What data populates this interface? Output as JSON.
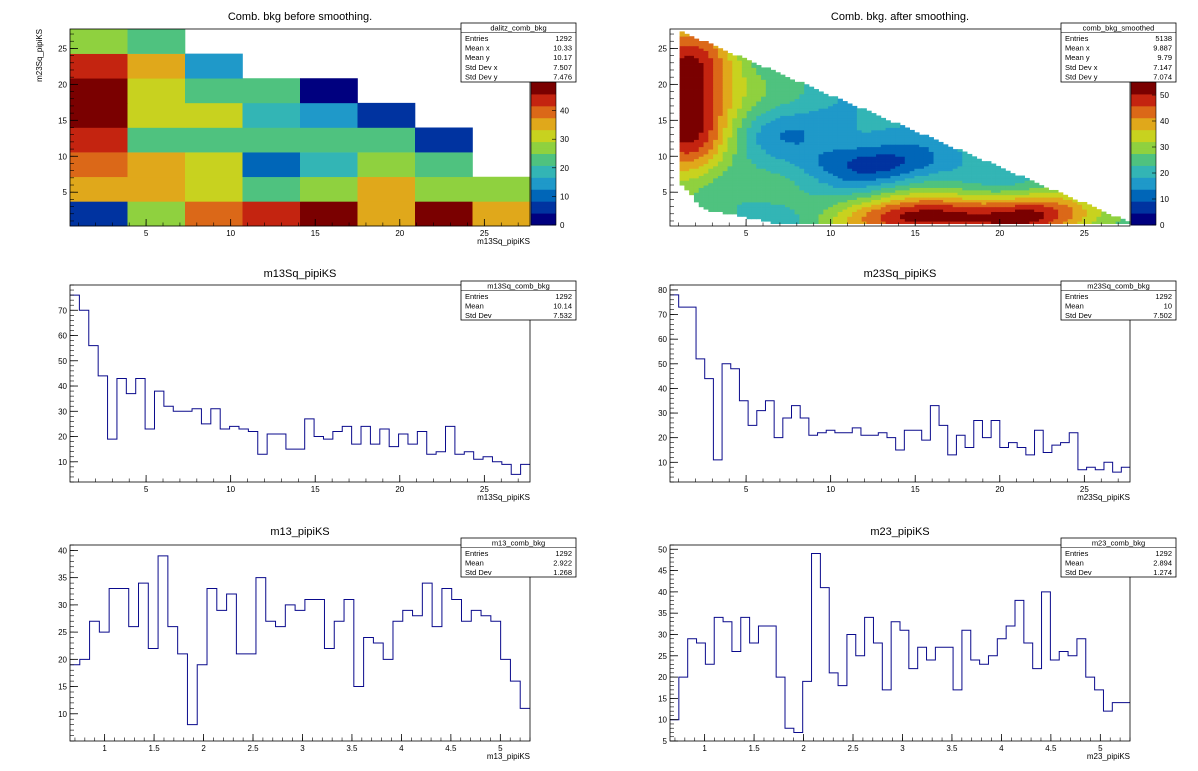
{
  "palette": {
    "histogram_line": "#0a0a8c",
    "axis": "#000000",
    "frame": "#000000",
    "background": "#ffffff",
    "colz_scale": [
      "#00007f",
      "#0033a0",
      "#0066b8",
      "#1f99c9",
      "#33b5b5",
      "#4fc27f",
      "#8fd13f",
      "#c8d21f",
      "#e0a81b",
      "#db6818",
      "#c42410",
      "#7a0000"
    ]
  },
  "chart_data": [
    {
      "id": "dalitz_comb_bkg",
      "type": "heatmap",
      "title": "Comb. bkg before smoothing.",
      "xlabel": "m13Sq_pipiKS",
      "ylabel": "m23Sq_pipiKS",
      "xlim": [
        0.5,
        27.7
      ],
      "ylim": [
        0.3,
        27.7
      ],
      "xticks": [
        5,
        10,
        15,
        20,
        25
      ],
      "yticks": [
        5,
        10,
        15,
        20,
        25
      ],
      "zlim": [
        0,
        50
      ],
      "zticks": [
        0,
        10,
        20,
        30,
        40
      ],
      "x_edges": [
        0.5,
        3.9,
        7.3,
        10.7,
        14.1,
        17.5,
        20.9,
        24.3,
        27.7
      ],
      "y_edges": [
        0.3,
        3.725,
        7.15,
        10.575,
        14.0,
        17.425,
        20.85,
        24.275,
        27.7
      ],
      "z": [
        [
          5,
          28,
          38,
          43,
          48,
          37,
          46,
          37
        ],
        [
          37,
          35,
          32,
          24,
          25,
          34,
          29,
          27
        ],
        [
          38,
          35,
          30,
          12,
          17,
          27,
          21,
          0
        ],
        [
          42,
          21,
          21,
          21,
          21,
          21,
          6,
          0
        ],
        [
          46,
          30,
          30,
          18,
          13,
          5,
          0,
          0
        ],
        [
          48,
          30,
          22,
          22,
          4,
          0,
          0,
          0
        ],
        [
          42,
          35,
          13,
          0,
          0,
          0,
          0,
          0
        ],
        [
          29,
          22,
          0,
          0,
          0,
          0,
          0,
          0
        ]
      ],
      "stats": {
        "name": "dalitz_comb_bkg",
        "rows": [
          [
            "Entries",
            "1292"
          ],
          [
            "Mean x",
            "10.33"
          ],
          [
            "Mean y",
            "10.17"
          ],
          [
            "Std Dev x",
            "7.507"
          ],
          [
            "Std Dev y",
            "7.476"
          ]
        ]
      }
    },
    {
      "id": "comb_bkg_smoothed",
      "type": "heatmap",
      "title": "Comb. bkg. after smoothing.",
      "xlabel": "",
      "ylabel": "",
      "xlim": [
        0.5,
        27.7
      ],
      "ylim": [
        0.3,
        27.7
      ],
      "xticks": [
        5,
        10,
        15,
        20,
        25
      ],
      "yticks": [
        5,
        10,
        15,
        20,
        25
      ],
      "zlim": [
        0,
        55
      ],
      "zticks": [
        0,
        10,
        20,
        30,
        40,
        50
      ],
      "boundary": "dalitz",
      "blobs": [
        {
          "x": 1.5,
          "y": 20.0,
          "sx": 2.2,
          "sy": 6.0,
          "w": 32
        },
        {
          "x": 1.5,
          "y": 11.0,
          "sx": 1.6,
          "sy": 5.0,
          "w": 14
        },
        {
          "x": 15.5,
          "y": 1.5,
          "sx": 3.2,
          "sy": 2.2,
          "w": 32
        },
        {
          "x": 22.5,
          "y": 1.8,
          "sx": 2.6,
          "sy": 2.2,
          "w": 26
        },
        {
          "x": 13.0,
          "y": 9.0,
          "sx": 3.0,
          "sy": 2.0,
          "w": -14
        },
        {
          "x": 9.0,
          "y": 13.5,
          "sx": 3.5,
          "sy": 2.5,
          "w": -7
        }
      ],
      "base_level": 22,
      "stats": {
        "name": "comb_bkg_smoothed",
        "rows": [
          [
            "Entries",
            "5138"
          ],
          [
            "Mean x",
            "9.887"
          ],
          [
            "Mean y",
            "9.79"
          ],
          [
            "Std Dev x",
            "7.147"
          ],
          [
            "Std Dev y",
            "7.074"
          ]
        ]
      }
    },
    {
      "id": "m13Sq_comb_bkg",
      "type": "histogram",
      "title": "m13Sq_pipiKS",
      "xlabel": "m13Sq_pipiKS",
      "xlim": [
        0.5,
        27.7
      ],
      "ylim": [
        2,
        80
      ],
      "xticks": [
        5,
        10,
        15,
        20,
        25
      ],
      "yticks": [
        10,
        20,
        30,
        40,
        50,
        60,
        70
      ],
      "values": [
        76,
        70,
        56,
        44,
        19,
        43,
        37,
        43,
        23,
        38,
        32,
        30,
        30,
        31,
        25,
        31,
        23,
        24,
        23,
        22,
        13,
        21,
        21,
        15,
        15,
        27,
        20,
        19,
        22,
        24,
        17,
        24,
        17,
        23,
        16,
        21,
        17,
        22,
        13,
        14,
        24,
        13,
        14,
        11,
        12,
        10,
        9,
        5,
        9
      ],
      "stats": {
        "name": "m13Sq_comb_bkg",
        "rows": [
          [
            "Entries",
            "1292"
          ],
          [
            "Mean",
            "10.14"
          ],
          [
            "Std Dev",
            "7.532"
          ]
        ]
      }
    },
    {
      "id": "m23Sq_comb_bkg",
      "type": "histogram",
      "title": "m23Sq_pipiKS",
      "xlabel": "m23Sq_pipiKS",
      "xlim": [
        0.5,
        27.7
      ],
      "ylim": [
        2,
        82
      ],
      "xticks": [
        5,
        10,
        15,
        20,
        25
      ],
      "yticks": [
        10,
        20,
        30,
        40,
        50,
        60,
        70,
        80
      ],
      "values": [
        78,
        73,
        73,
        52,
        44,
        11,
        50,
        48,
        35,
        25,
        31,
        35,
        20,
        28,
        33,
        28,
        21,
        22,
        23,
        22,
        22,
        24,
        21,
        21,
        22,
        20,
        15,
        23,
        23,
        19,
        33,
        25,
        13,
        21,
        16,
        27,
        20,
        27,
        16,
        18,
        16,
        13,
        23,
        14,
        17,
        18,
        22,
        7,
        8,
        7,
        10,
        6,
        8
      ],
      "stats": {
        "name": "m23Sq_comb_bkg",
        "rows": [
          [
            "Entries",
            "1292"
          ],
          [
            "Mean",
            "10"
          ],
          [
            "Std Dev",
            "7.502"
          ]
        ]
      }
    },
    {
      "id": "m13_comb_bkg",
      "type": "histogram",
      "title": "m13_pipiKS",
      "xlabel": "m13_pipiKS",
      "xlim": [
        0.65,
        5.3
      ],
      "ylim": [
        5,
        41
      ],
      "xticks": [
        1,
        1.5,
        2,
        2.5,
        3,
        3.5,
        4,
        4.5,
        5
      ],
      "yticks": [
        10,
        15,
        20,
        25,
        30,
        35,
        40
      ],
      "values": [
        19,
        20,
        27,
        25,
        33,
        33,
        26,
        34,
        22,
        39,
        26,
        21,
        8,
        19,
        33,
        29,
        32,
        21,
        21,
        35,
        27,
        26,
        30,
        29,
        31,
        31,
        22,
        27,
        31,
        15,
        24,
        23,
        20,
        27,
        29,
        28,
        34,
        26,
        33,
        31,
        27,
        29,
        28,
        27,
        20,
        16,
        11
      ],
      "stats": {
        "name": "m13_comb_bkg",
        "rows": [
          [
            "Entries",
            "1292"
          ],
          [
            "Mean",
            "2.922"
          ],
          [
            "Std Dev",
            "1.268"
          ]
        ]
      }
    },
    {
      "id": "m23_comb_bkg",
      "type": "histogram",
      "title": "m23_pipiKS",
      "xlabel": "m23_pipiKS",
      "xlim": [
        0.65,
        5.3
      ],
      "ylim": [
        5,
        51
      ],
      "xticks": [
        1,
        1.5,
        2,
        2.5,
        3,
        3.5,
        4,
        4.5,
        5
      ],
      "yticks": [
        5,
        10,
        15,
        20,
        25,
        30,
        35,
        40,
        45,
        50
      ],
      "values": [
        10,
        20,
        29,
        28,
        23,
        34,
        33,
        26,
        34,
        28,
        32,
        32,
        20,
        8,
        7,
        19,
        49,
        41,
        21,
        18,
        30,
        25,
        34,
        28,
        17,
        33,
        31,
        22,
        27,
        24,
        27,
        27,
        17,
        31,
        24,
        23,
        25,
        29,
        32,
        38,
        28,
        22,
        40,
        24,
        26,
        25,
        29,
        20,
        17,
        12,
        14,
        14
      ],
      "stats": {
        "name": "m23_comb_bkg",
        "rows": [
          [
            "Entries",
            "1292"
          ],
          [
            "Mean",
            "2.894"
          ],
          [
            "Std Dev",
            "1.274"
          ]
        ]
      }
    }
  ]
}
